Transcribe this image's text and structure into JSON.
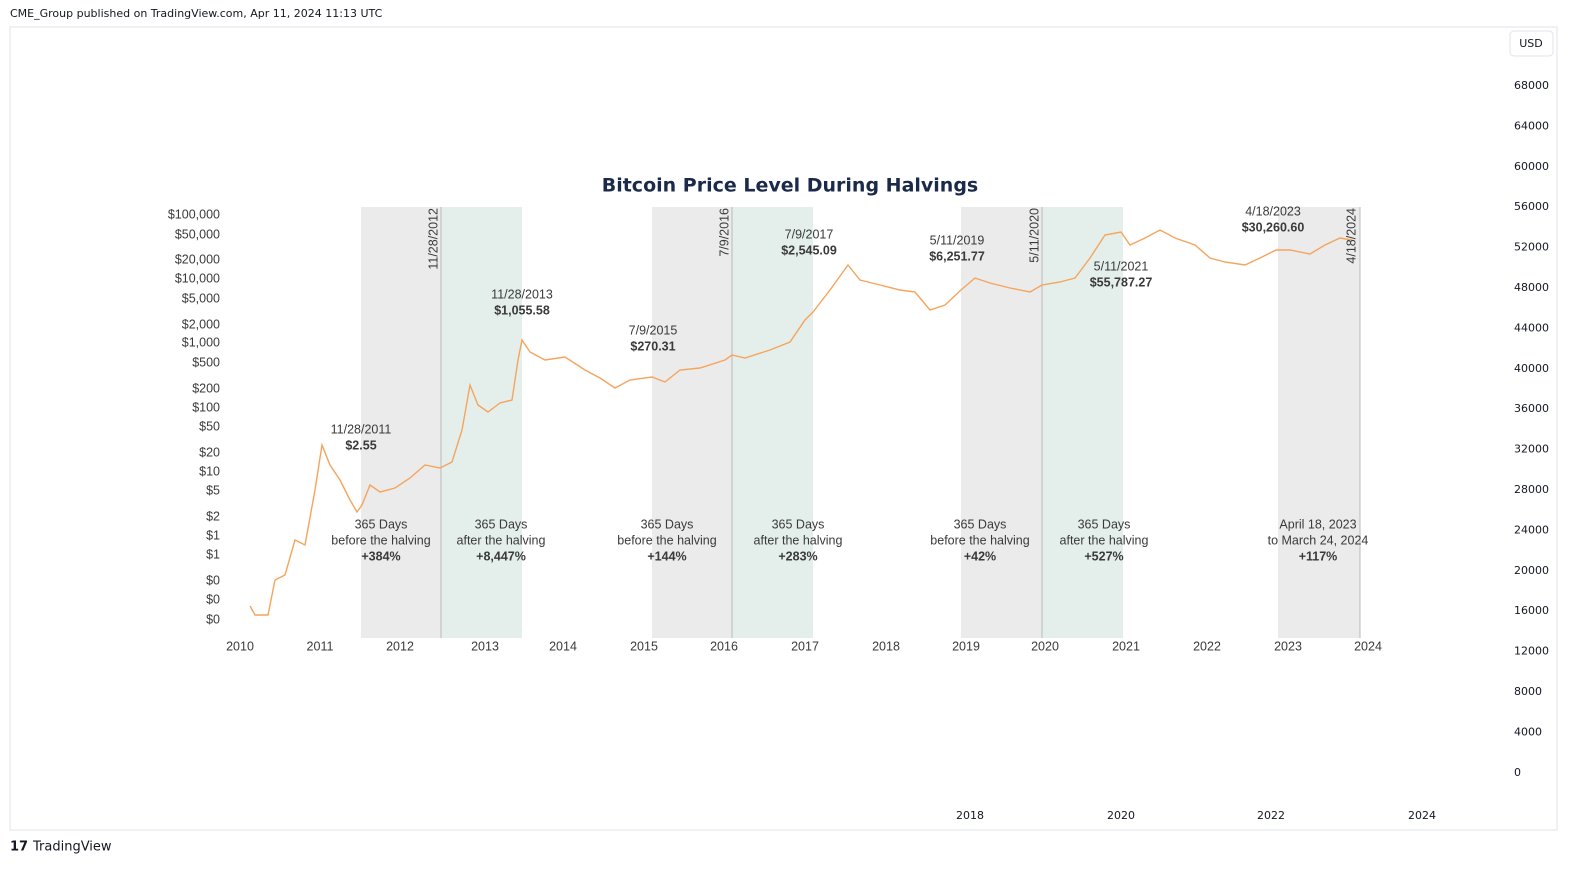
{
  "header": {
    "published": "CME_Group published on TradingView.com, Apr 11, 2024 11:13 UTC"
  },
  "currency": "USD",
  "price_axis": [
    "68000",
    "64000",
    "60000",
    "56000",
    "52000",
    "48000",
    "44000",
    "40000",
    "36000",
    "32000",
    "28000",
    "24000",
    "20000",
    "16000",
    "12000",
    "8000",
    "4000",
    "0"
  ],
  "time_axis": [
    "2018",
    "2020",
    "2022",
    "2024"
  ],
  "footer": {
    "brand": "TradingView"
  },
  "image": {
    "title": "Bitcoin Price Level During Halvings",
    "y_labels": [
      "$100,000",
      "$50,000",
      "$20,000",
      "$10,000",
      "$5,000",
      "$2,000",
      "$1,000",
      "$500",
      "$200",
      "$100",
      "$50",
      "$20",
      "$10",
      "$5",
      "$2",
      "$1",
      "$1",
      "$0",
      "$0",
      "$0"
    ],
    "x_labels": [
      "2010",
      "2011",
      "2012",
      "2013",
      "2014",
      "2015",
      "2016",
      "2017",
      "2018",
      "2019",
      "2020",
      "2021",
      "2022",
      "2023",
      "2024"
    ],
    "halving_dates": [
      "11/28/2012",
      "7/9/2016",
      "5/11/2020",
      "4/18/2024"
    ],
    "price_notes": [
      {
        "date": "11/28/2011",
        "price": "$2.55"
      },
      {
        "date": "11/28/2013",
        "price": "$1,055.58"
      },
      {
        "date": "7/9/2015",
        "price": "$270.31"
      },
      {
        "date": "7/9/2017",
        "price": "$2,545.09"
      },
      {
        "date": "5/11/2019",
        "price": "$6,251.77"
      },
      {
        "date": "5/11/2021",
        "price": "$55,787.27"
      },
      {
        "date": "4/18/2023",
        "price": "$30,260.60"
      }
    ],
    "periods": [
      [
        "365 Days",
        "before the halving",
        "+384%"
      ],
      [
        "365 Days",
        "after the halving",
        "+8,447%"
      ],
      [
        "365 Days",
        "before the halving",
        "+144%"
      ],
      [
        "365 Days",
        "after the halving",
        "+283%"
      ],
      [
        "365 Days",
        "before the halving",
        "+42%"
      ],
      [
        "365 Days",
        "after the halving",
        "+527%"
      ],
      [
        "April 18, 2023",
        "to March 24, 2024",
        "+117%"
      ]
    ]
  }
}
